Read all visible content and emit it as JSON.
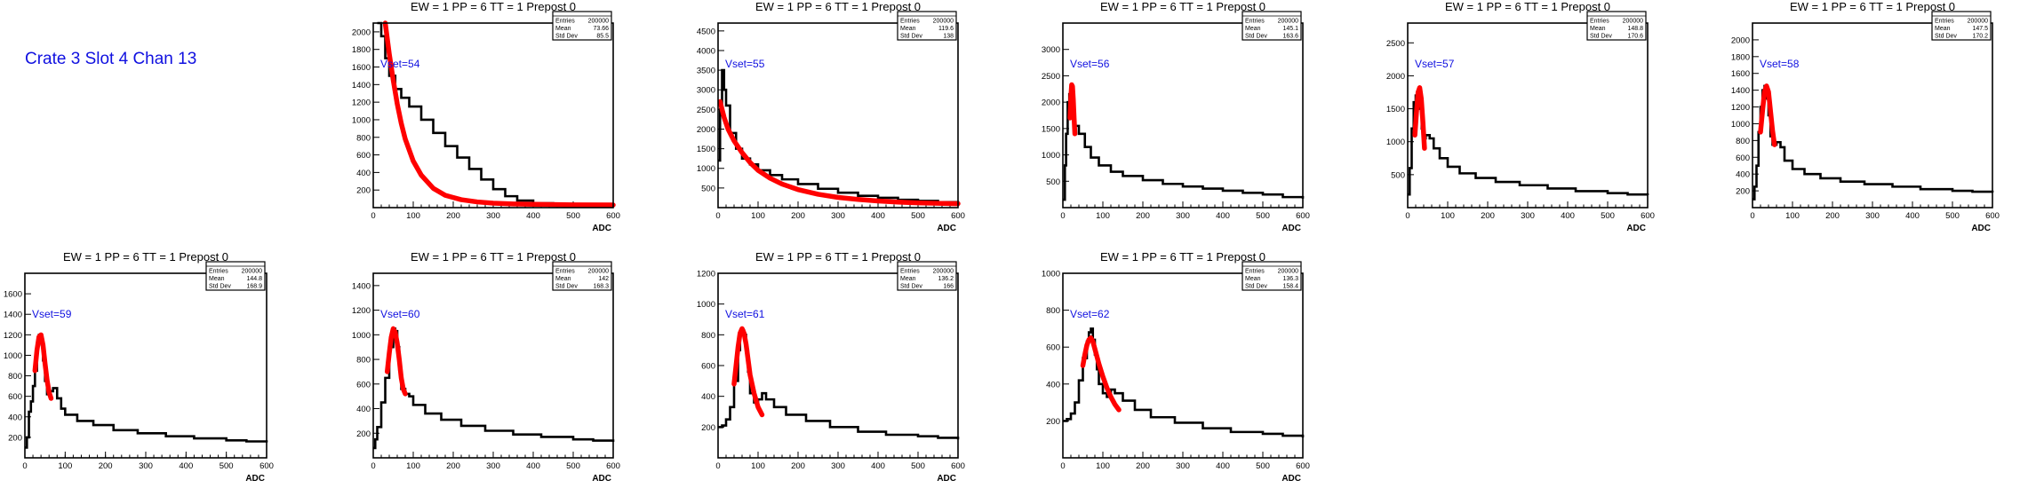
{
  "label": "Crate 3 Slot 4 Chan 13",
  "stats_labels": {
    "entries": "Entries",
    "mean": "Mean",
    "std": "Std Dev"
  },
  "colors": {
    "data": "#000000",
    "fit": "#ff0000",
    "vset_text": "#1010e0"
  },
  "chart_data": [
    {
      "type": "histogram",
      "title": "EW = 1 PP = 6 TT = 1 Prepost 0",
      "xlabel": "ADC",
      "ylabel": "",
      "xlim": [
        0,
        600
      ],
      "ylim": [
        0,
        2100
      ],
      "yticks": [
        200,
        400,
        600,
        800,
        1000,
        1200,
        1400,
        1600,
        1800,
        2000
      ],
      "xticks": [
        0,
        100,
        200,
        300,
        400,
        500,
        600
      ],
      "annotation": "Vset=54",
      "stats": {
        "entries": "200000",
        "mean": "73.66",
        "std": "85.5"
      },
      "data_x": [
        10,
        20,
        30,
        40,
        55,
        70,
        90,
        120,
        150,
        180,
        210,
        240,
        270,
        300,
        330,
        360,
        400,
        450,
        500,
        550,
        600
      ],
      "data_y": [
        2100,
        1950,
        1700,
        1500,
        1350,
        1250,
        1150,
        1000,
        850,
        700,
        570,
        440,
        320,
        210,
        130,
        80,
        50,
        40,
        35,
        30,
        30
      ],
      "fit_x": [
        30,
        40,
        50,
        60,
        70,
        80,
        100,
        120,
        150,
        180,
        220,
        260,
        300,
        350,
        400,
        500,
        600
      ],
      "fit_y": [
        2100,
        1750,
        1450,
        1180,
        960,
        780,
        530,
        370,
        220,
        140,
        90,
        65,
        50,
        42,
        38,
        32,
        30
      ]
    },
    {
      "type": "histogram",
      "title": "EW = 1 PP = 6 TT = 1 Prepost 0",
      "xlabel": "ADC",
      "ylabel": "",
      "xlim": [
        0,
        600
      ],
      "ylim": [
        0,
        4700
      ],
      "yticks": [
        500,
        1000,
        1500,
        2000,
        2500,
        3000,
        3500,
        4000,
        4500
      ],
      "xticks": [
        0,
        100,
        200,
        300,
        400,
        500,
        600
      ],
      "annotation": "Vset=55",
      "stats": {
        "entries": "200000",
        "mean": "119.6",
        "std": "138"
      },
      "data_x": [
        0,
        5,
        10,
        15,
        20,
        30,
        45,
        60,
        80,
        100,
        130,
        160,
        200,
        250,
        300,
        350,
        400,
        450,
        500,
        550,
        600
      ],
      "data_y": [
        1200,
        2500,
        3500,
        3000,
        2600,
        1900,
        1500,
        1250,
        1100,
        950,
        830,
        720,
        600,
        480,
        380,
        300,
        250,
        200,
        170,
        140,
        120
      ],
      "fit_x": [
        5,
        15,
        25,
        40,
        60,
        80,
        100,
        130,
        160,
        200,
        250,
        300,
        350,
        400,
        450,
        500,
        600
      ],
      "fit_y": [
        2700,
        2300,
        2000,
        1700,
        1400,
        1150,
        950,
        750,
        600,
        460,
        340,
        260,
        210,
        170,
        140,
        120,
        100
      ]
    },
    {
      "type": "histogram",
      "title": "EW = 1 PP = 6 TT = 1 Prepost 0",
      "xlabel": "ADC",
      "ylabel": "",
      "xlim": [
        0,
        600
      ],
      "ylim": [
        0,
        3500
      ],
      "yticks": [
        500,
        1000,
        1500,
        2000,
        2500,
        3000
      ],
      "xticks": [
        0,
        100,
        200,
        300,
        400,
        500,
        600
      ],
      "annotation": "Vset=56",
      "stats": {
        "entries": "200000",
        "mean": "145.1",
        "std": "163.6"
      },
      "data_x": [
        0,
        5,
        8,
        12,
        16,
        20,
        25,
        30,
        40,
        55,
        70,
        90,
        120,
        150,
        200,
        250,
        300,
        350,
        400,
        450,
        500,
        550,
        600
      ],
      "data_y": [
        150,
        800,
        1400,
        2000,
        2150,
        1900,
        1700,
        1550,
        1400,
        1150,
        950,
        800,
        680,
        600,
        520,
        450,
        400,
        360,
        320,
        280,
        250,
        200,
        170
      ],
      "fit_x": [
        18,
        20,
        22,
        24,
        26,
        28,
        30
      ],
      "fit_y": [
        1700,
        2100,
        2330,
        2300,
        2050,
        1700,
        1400
      ]
    },
    {
      "type": "histogram",
      "title": "EW = 1 PP = 6 TT = 1 Prepost 0",
      "xlabel": "ADC",
      "ylabel": "",
      "xlim": [
        0,
        600
      ],
      "ylim": [
        0,
        2800
      ],
      "yticks": [
        500,
        1000,
        1500,
        2000,
        2500
      ],
      "xticks": [
        0,
        100,
        200,
        300,
        400,
        500,
        600
      ],
      "annotation": "Vset=57",
      "stats": {
        "entries": "200000",
        "mean": "148.8",
        "std": "170.6"
      },
      "data_x": [
        0,
        5,
        10,
        15,
        20,
        25,
        30,
        35,
        40,
        45,
        55,
        65,
        80,
        100,
        130,
        170,
        220,
        280,
        350,
        420,
        500,
        550,
        600
      ],
      "data_y": [
        200,
        600,
        1200,
        1600,
        1700,
        1750,
        1500,
        1200,
        1050,
        1100,
        1050,
        900,
        750,
        620,
        520,
        450,
        390,
        340,
        290,
        250,
        220,
        200,
        190
      ],
      "fit_x": [
        18,
        22,
        26,
        30,
        34,
        38,
        42
      ],
      "fit_y": [
        1100,
        1450,
        1750,
        1820,
        1650,
        1300,
        900
      ]
    },
    {
      "type": "histogram",
      "title": "EW = 1 PP = 6 TT = 1 Prepost 0",
      "xlabel": "ADC",
      "ylabel": "",
      "xlim": [
        0,
        600
      ],
      "ylim": [
        0,
        2200
      ],
      "yticks": [
        200,
        400,
        600,
        800,
        1000,
        1200,
        1400,
        1600,
        1800,
        2000
      ],
      "xticks": [
        0,
        100,
        200,
        300,
        400,
        500,
        600
      ],
      "annotation": "Vset=58",
      "stats": {
        "entries": "200000",
        "mean": "147.5",
        "std": "170.2"
      },
      "data_x": [
        0,
        5,
        10,
        15,
        20,
        25,
        30,
        35,
        40,
        45,
        50,
        60,
        70,
        80,
        100,
        130,
        170,
        220,
        280,
        350,
        420,
        500,
        550,
        600
      ],
      "data_y": [
        100,
        250,
        500,
        900,
        1200,
        1400,
        1450,
        1300,
        1100,
        850,
        750,
        780,
        720,
        560,
        460,
        400,
        350,
        310,
        280,
        250,
        220,
        200,
        190,
        180
      ],
      "fit_x": [
        20,
        25,
        30,
        35,
        40,
        45,
        50,
        55
      ],
      "fit_y": [
        900,
        1150,
        1380,
        1450,
        1380,
        1150,
        920,
        750
      ]
    },
    {
      "type": "histogram",
      "title": "EW = 1 PP = 6 TT = 1 Prepost 0",
      "xlabel": "ADC",
      "ylabel": "",
      "xlim": [
        0,
        600
      ],
      "ylim": [
        0,
        1800
      ],
      "yticks": [
        200,
        400,
        600,
        800,
        1000,
        1200,
        1400,
        1600
      ],
      "xticks": [
        0,
        100,
        200,
        300,
        400,
        500,
        600
      ],
      "annotation": "Vset=59",
      "stats": {
        "entries": "200000",
        "mean": "144.8",
        "std": "168.9"
      },
      "data_x": [
        0,
        5,
        10,
        15,
        20,
        25,
        30,
        35,
        40,
        45,
        50,
        55,
        60,
        70,
        80,
        90,
        100,
        130,
        170,
        220,
        280,
        350,
        420,
        500,
        550,
        600
      ],
      "data_y": [
        100,
        200,
        450,
        550,
        700,
        850,
        1100,
        1200,
        1150,
        950,
        750,
        620,
        650,
        680,
        580,
        480,
        420,
        360,
        320,
        270,
        240,
        210,
        190,
        170,
        160,
        150
      ],
      "fit_x": [
        25,
        30,
        35,
        40,
        45,
        50,
        55,
        60,
        65
      ],
      "fit_y": [
        850,
        1050,
        1180,
        1200,
        1100,
        920,
        760,
        640,
        580
      ]
    },
    {
      "type": "histogram",
      "title": "EW = 1 PP = 6 TT = 1 Prepost 0",
      "xlabel": "ADC",
      "ylabel": "",
      "xlim": [
        0,
        600
      ],
      "ylim": [
        0,
        1500
      ],
      "yticks": [
        200,
        400,
        600,
        800,
        1000,
        1200,
        1400
      ],
      "xticks": [
        0,
        100,
        200,
        300,
        400,
        500,
        600
      ],
      "annotation": "Vset=60",
      "stats": {
        "entries": "200000",
        "mean": "142",
        "std": "168.3"
      },
      "data_x": [
        0,
        5,
        10,
        20,
        30,
        40,
        50,
        55,
        60,
        65,
        70,
        80,
        90,
        100,
        130,
        170,
        220,
        280,
        350,
        420,
        500,
        550,
        600
      ],
      "data_y": [
        80,
        150,
        250,
        450,
        650,
        900,
        1050,
        1030,
        900,
        720,
        560,
        520,
        500,
        430,
        360,
        310,
        260,
        220,
        190,
        170,
        150,
        140,
        130
      ],
      "fit_x": [
        35,
        40,
        45,
        50,
        55,
        60,
        65,
        70,
        75,
        80
      ],
      "fit_y": [
        700,
        850,
        980,
        1050,
        1020,
        930,
        800,
        650,
        560,
        520
      ]
    },
    {
      "type": "histogram",
      "title": "EW = 1 PP = 6 TT = 1 Prepost 0",
      "xlabel": "ADC",
      "ylabel": "",
      "xlim": [
        0,
        600
      ],
      "ylim": [
        0,
        1200
      ],
      "yticks": [
        200,
        400,
        600,
        800,
        1000,
        1200
      ],
      "xticks": [
        0,
        100,
        200,
        300,
        400,
        500,
        600
      ],
      "annotation": "Vset=61",
      "stats": {
        "entries": "200000",
        "mean": "136.2",
        "std": "166"
      },
      "data_x": [
        0,
        10,
        20,
        30,
        40,
        50,
        55,
        60,
        65,
        70,
        75,
        80,
        90,
        100,
        110,
        120,
        140,
        170,
        220,
        280,
        350,
        420,
        500,
        550,
        600
      ],
      "data_y": [
        200,
        210,
        250,
        330,
        500,
        700,
        800,
        830,
        800,
        700,
        560,
        420,
        360,
        380,
        420,
        380,
        330,
        280,
        240,
        200,
        170,
        150,
        140,
        130,
        120
      ],
      "fit_x": [
        40,
        45,
        50,
        55,
        60,
        65,
        70,
        75,
        80,
        90,
        100,
        110
      ],
      "fit_y": [
        480,
        600,
        720,
        810,
        840,
        810,
        740,
        640,
        540,
        420,
        330,
        280
      ]
    },
    {
      "type": "histogram",
      "title": "EW = 1 PP = 6 TT = 1 Prepost 0",
      "xlabel": "ADC",
      "ylabel": "",
      "xlim": [
        0,
        600
      ],
      "ylim": [
        0,
        1000
      ],
      "yticks": [
        200,
        400,
        600,
        800,
        1000
      ],
      "xticks": [
        0,
        100,
        200,
        300,
        400,
        500,
        600
      ],
      "annotation": "Vset=62",
      "stats": {
        "entries": "200000",
        "mean": "136.3",
        "std": "158.4"
      },
      "data_x": [
        0,
        10,
        20,
        30,
        40,
        50,
        60,
        65,
        70,
        75,
        80,
        85,
        90,
        100,
        110,
        120,
        130,
        150,
        180,
        220,
        280,
        350,
        420,
        500,
        550,
        600
      ],
      "data_y": [
        200,
        210,
        240,
        300,
        420,
        540,
        630,
        680,
        700,
        640,
        560,
        480,
        400,
        350,
        330,
        370,
        350,
        310,
        260,
        220,
        190,
        160,
        140,
        130,
        120,
        110
      ],
      "fit_x": [
        50,
        55,
        60,
        65,
        70,
        75,
        80,
        90,
        100,
        110,
        120,
        130,
        140
      ],
      "fit_y": [
        500,
        560,
        610,
        640,
        650,
        630,
        590,
        510,
        440,
        380,
        330,
        290,
        260
      ]
    }
  ]
}
